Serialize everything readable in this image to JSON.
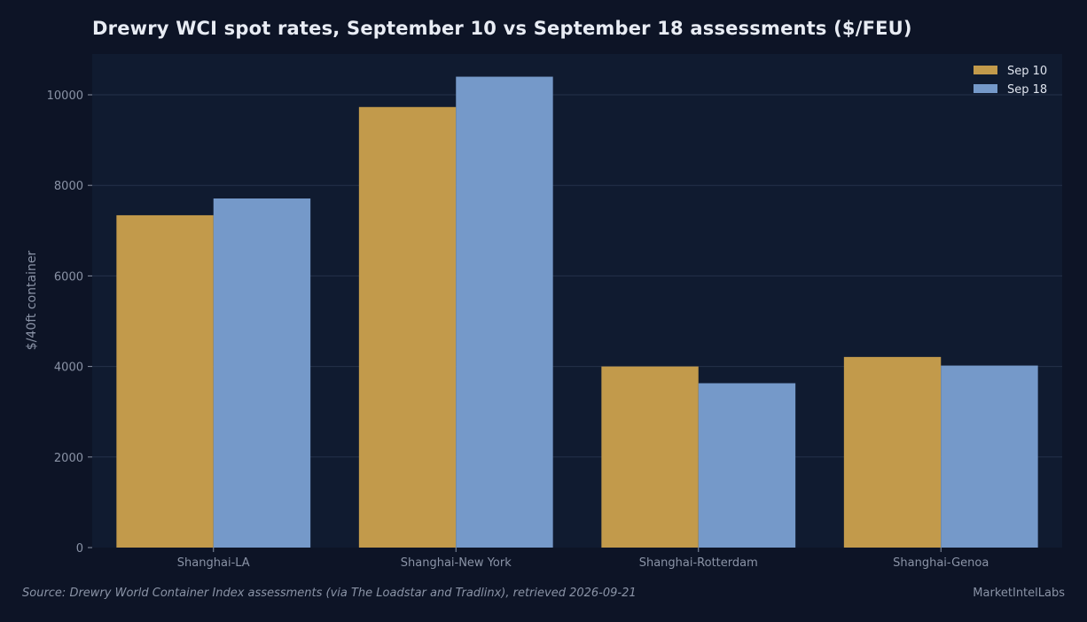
{
  "colors": {
    "background": "#0d1426",
    "plot_background": "#101b30",
    "grid": "#24314a",
    "tick_text": "#8a93a6",
    "title_text": "#e8ecf4",
    "legend_text": "#dfe4ee"
  },
  "chart_data": {
    "type": "bar",
    "title": "Drewry WCI spot rates, September 10 vs September 18 assessments ($/FEU)",
    "xlabel": "",
    "ylabel": "$/40ft container",
    "ylim": [
      0,
      10900
    ],
    "yticks": [
      0,
      2000,
      4000,
      6000,
      8000,
      10000
    ],
    "grid": true,
    "legend_position": "top-right",
    "categories": [
      "Shanghai-LA",
      "Shanghai-New York",
      "Shanghai-Rotterdam",
      "Shanghai-Genoa"
    ],
    "series": [
      {
        "name": "Sep 10",
        "color": "#c29a4b",
        "values": [
          7340,
          9730,
          4000,
          4210
        ]
      },
      {
        "name": "Sep 18",
        "color": "#7599c9",
        "values": [
          7710,
          10400,
          3630,
          4020
        ]
      }
    ]
  },
  "footer": {
    "source": "Source: Drewry World Container Index assessments (via The Loadstar and Tradlinx), retrieved 2026-09-21",
    "brand": "MarketIntelLabs"
  }
}
